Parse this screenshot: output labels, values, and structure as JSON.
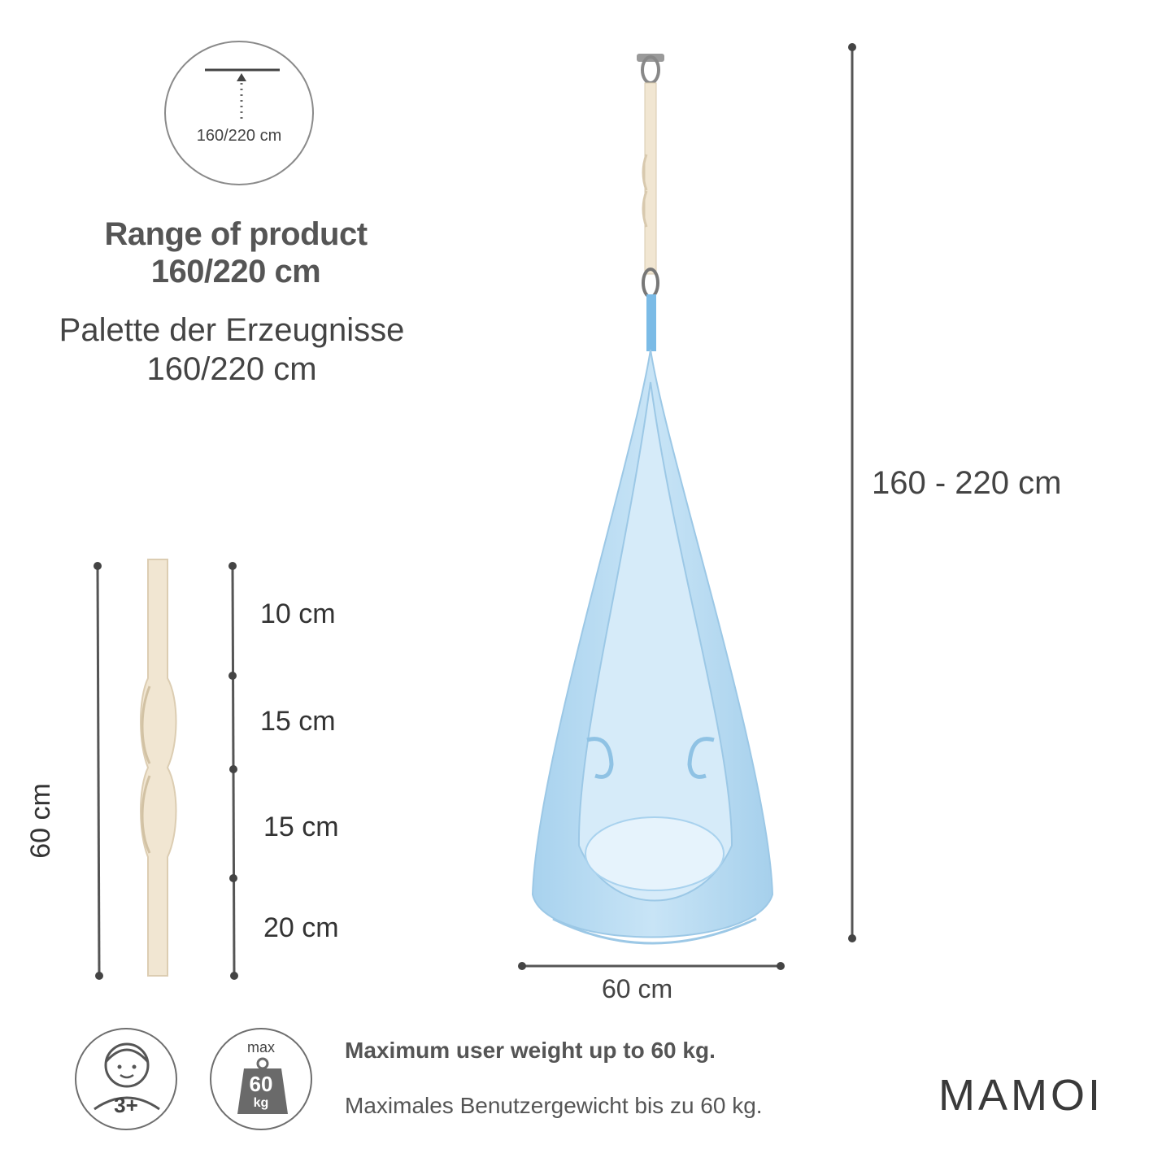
{
  "range_icon": {
    "label": "160/220 cm"
  },
  "range": {
    "title_line1": "Range of product",
    "title_line2": "160/220 cm",
    "de_line1": "Palette der Erzeugnisse",
    "de_line2": "160/220 cm"
  },
  "dimensions": {
    "total_height": "160 - 220 cm",
    "width": "60 cm",
    "strap_length": "60  cm",
    "segments": [
      "10  cm",
      "15  cm",
      "15  cm",
      "20  cm"
    ]
  },
  "badges": {
    "age": "3+",
    "weight_top": "max",
    "weight_value": "60",
    "weight_unit": "kg"
  },
  "weight": {
    "en": "Maximum user weight up to 60 kg.",
    "de": "Maximales Benutzergewicht bis zu 60 kg."
  },
  "brand": "MAMOI",
  "colors": {
    "pod": "#b9dcf2",
    "strap": "#f1e6d2",
    "line": "#555555"
  }
}
